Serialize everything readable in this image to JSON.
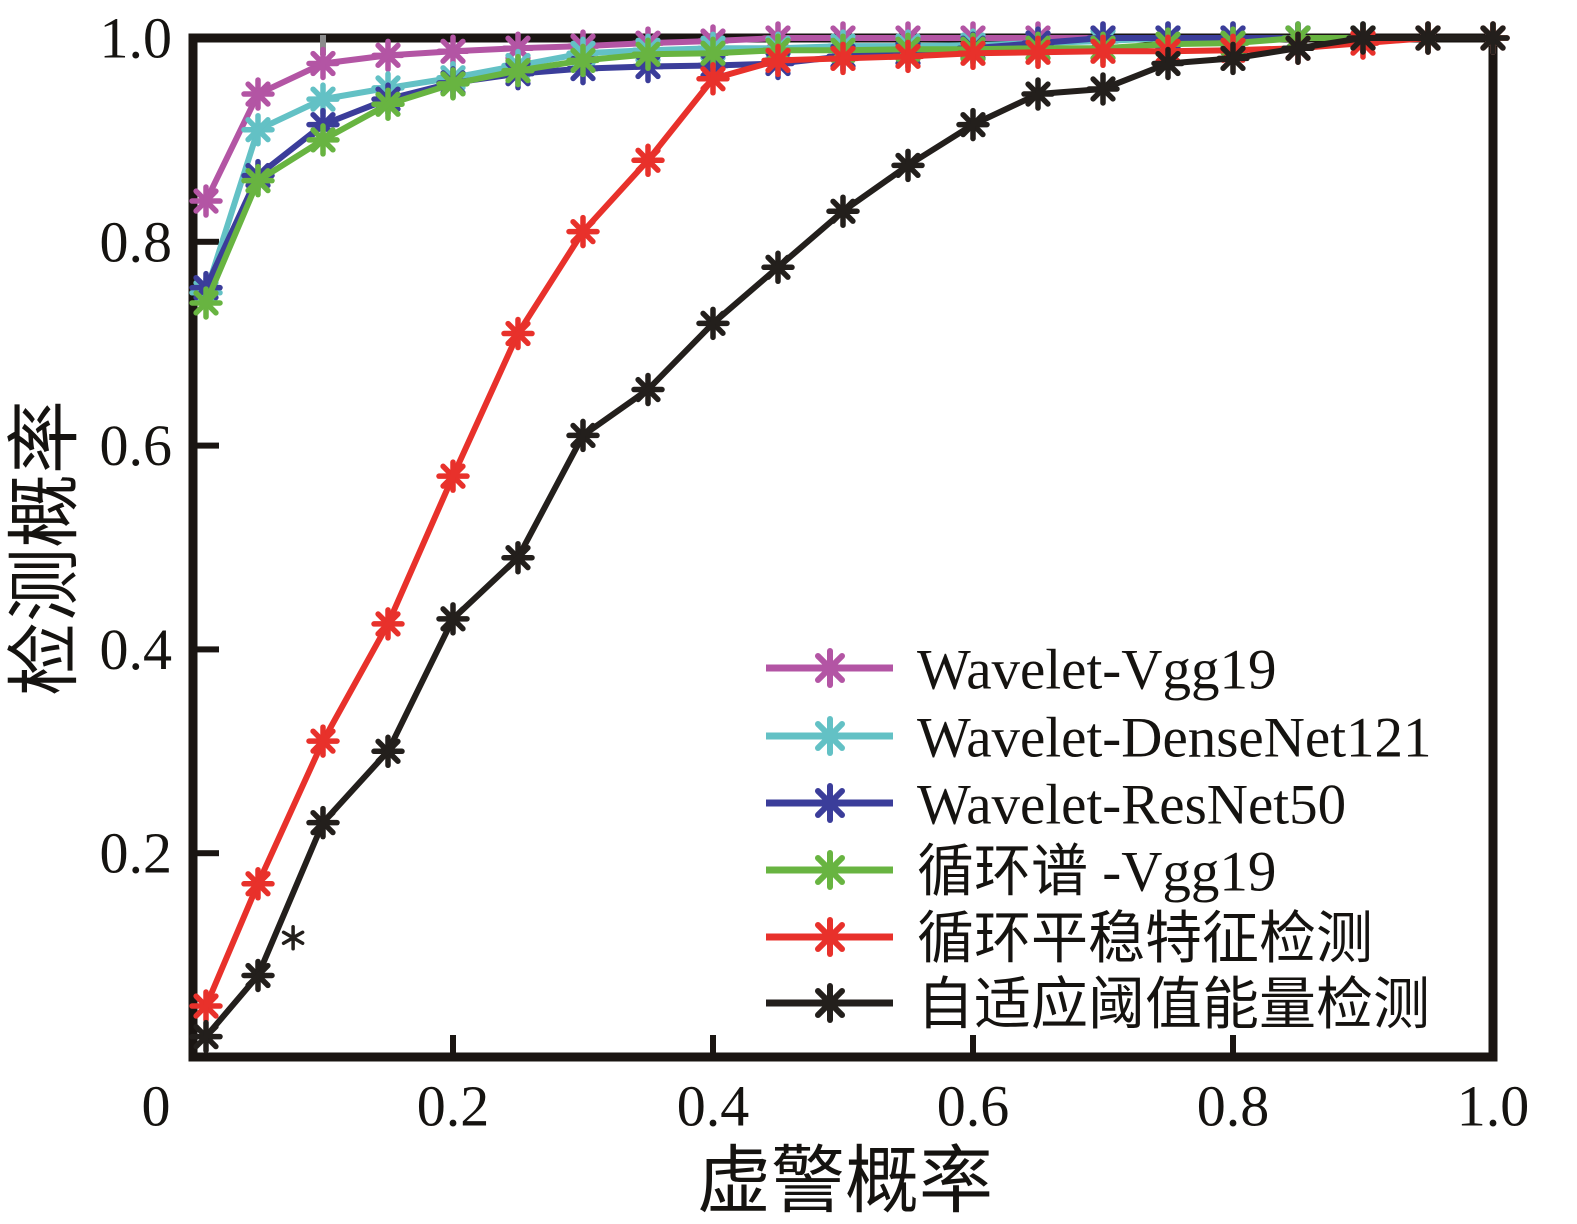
{
  "chart_data": {
    "type": "line",
    "title": "",
    "xlabel": "虚警概率",
    "ylabel": "检测概率",
    "xlim": [
      0,
      1
    ],
    "ylim": [
      0,
      1
    ],
    "grid": false,
    "marker": "asterisk-8-spoke",
    "legend_position": "inside-lower-right",
    "x": [
      0.01,
      0.05,
      0.1,
      0.15,
      0.2,
      0.25,
      0.3,
      0.35,
      0.4,
      0.45,
      0.5,
      0.55,
      0.6,
      0.65,
      0.7,
      0.75,
      0.8,
      0.85,
      0.9,
      0.95,
      1.0
    ],
    "series": [
      {
        "name": "Wavelet-Vgg19",
        "color": "#b355a4",
        "values": [
          0.84,
          0.945,
          0.975,
          0.983,
          0.987,
          0.99,
          0.992,
          0.995,
          0.997,
          1.0,
          1.0,
          1.0,
          1.0,
          1.0,
          1.0,
          1.0,
          1.0,
          1.0,
          1.0,
          1.0,
          1.0
        ]
      },
      {
        "name": "Wavelet-DenseNet121",
        "color": "#63c1c5",
        "values": [
          0.75,
          0.91,
          0.94,
          0.951,
          0.961,
          0.973,
          0.985,
          0.988,
          0.99,
          0.99,
          0.992,
          0.992,
          0.993,
          0.995,
          0.997,
          1.0,
          1.0,
          1.0,
          1.0,
          1.0,
          1.0
        ]
      },
      {
        "name": "Wavelet-ResNet50",
        "color": "#3b3d9a",
        "values": [
          0.755,
          0.865,
          0.915,
          0.94,
          0.956,
          0.965,
          0.97,
          0.972,
          0.973,
          0.975,
          0.982,
          0.985,
          0.99,
          0.995,
          1.0,
          1.0,
          1.0,
          1.0,
          1.0,
          1.0,
          1.0
        ]
      },
      {
        "name": "循环谱 -Vgg19",
        "color": "#68b441",
        "values": [
          0.74,
          0.86,
          0.9,
          0.935,
          0.955,
          0.968,
          0.978,
          0.984,
          0.985,
          0.988,
          0.988,
          0.989,
          0.989,
          0.99,
          0.99,
          0.994,
          0.995,
          1.0,
          1.0,
          1.0,
          1.0
        ]
      },
      {
        "name": "循环平稳特征检测",
        "color": "#e8312b",
        "values": [
          0.05,
          0.17,
          0.31,
          0.425,
          0.57,
          0.71,
          0.81,
          0.88,
          0.96,
          0.978,
          0.98,
          0.982,
          0.985,
          0.986,
          0.987,
          0.987,
          0.988,
          0.99,
          0.995,
          1.0,
          1.0
        ]
      },
      {
        "name": "自适应阈值能量检测",
        "color": "#231f1c",
        "values": [
          0.02,
          0.08,
          0.23,
          0.3,
          0.43,
          0.49,
          0.61,
          0.655,
          0.72,
          0.775,
          0.83,
          0.875,
          0.915,
          0.945,
          0.95,
          0.975,
          0.98,
          0.99,
          1.0,
          1.0,
          1.0
        ]
      }
    ],
    "x_ticks": {
      "values": [
        0,
        0.2,
        0.4,
        0.6,
        0.8,
        1.0
      ],
      "labels": [
        "0",
        "0.2",
        "0.4",
        "0.6",
        "0.8",
        "1.0"
      ],
      "marks": [
        0.2,
        0.4,
        0.6,
        0.8
      ]
    },
    "y_ticks": {
      "values": [
        0.2,
        0.4,
        0.6,
        0.8,
        1.0
      ],
      "labels": [
        "0.2",
        "0.4",
        "0.6",
        "0.8",
        "1.0"
      ],
      "marks": [
        0.2,
        0.4,
        0.6,
        0.8
      ]
    },
    "annotations": [
      {
        "type": "stray-asterisk-marker",
        "x": 0.077,
        "y": 0.117,
        "color": "#231f1c"
      },
      {
        "type": "top-spine-tick-artifact",
        "x": 0.1,
        "color": "#8c8c8c"
      }
    ],
    "frame_color": "#1a1512",
    "text_color": "#151310"
  }
}
